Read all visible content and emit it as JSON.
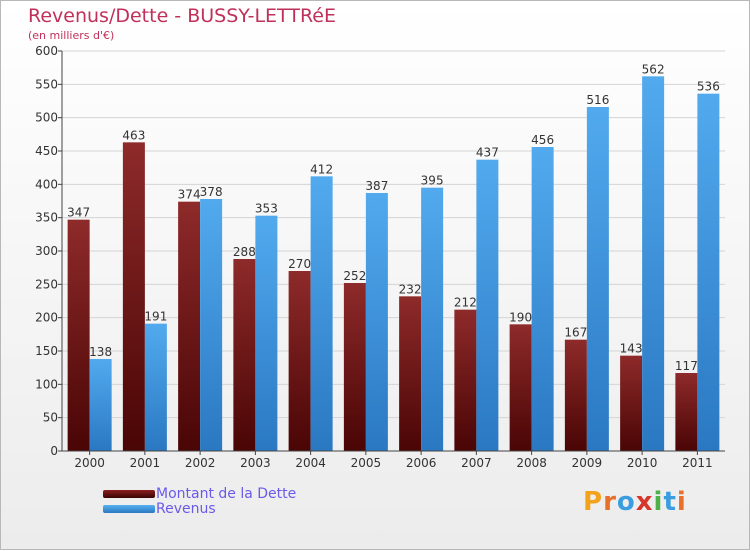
{
  "title": "Revenus/Dette - BUSSY-LETTRéE",
  "subtitle": "(en milliers d'€)",
  "legend": {
    "items": [
      {
        "label": "Montant de la Dette",
        "color": "#8c2020"
      },
      {
        "label": "Revenus",
        "color": "#4aa3e8"
      }
    ]
  },
  "logo": {
    "text": "Proxiti",
    "colors": [
      "#f2a21b",
      "#e8702a",
      "#3a9de0",
      "#d6362c",
      "#4fb04a",
      "#3a9de0",
      "#e8702a"
    ]
  },
  "chart_data": {
    "type": "bar",
    "title": "Revenus/Dette - BUSSY-LETTRéE",
    "subtitle": "(en milliers d'€)",
    "categories": [
      "2000",
      "2001",
      "2002",
      "2003",
      "2004",
      "2005",
      "2006",
      "2007",
      "2008",
      "2009",
      "2010",
      "2011"
    ],
    "series": [
      {
        "name": "Montant de la Dette",
        "color": "#8c2020",
        "values": [
          347,
          463,
          374,
          288,
          270,
          252,
          232,
          212,
          190,
          167,
          143,
          117
        ]
      },
      {
        "name": "Revenus",
        "color": "#4aa3e8",
        "values": [
          138,
          191,
          378,
          353,
          412,
          387,
          395,
          437,
          456,
          516,
          562,
          536
        ]
      }
    ],
    "ylim": [
      0,
      600
    ],
    "yticks": [
      0,
      50,
      100,
      150,
      200,
      250,
      300,
      350,
      400,
      450,
      500,
      550,
      600
    ],
    "grid": true,
    "legend_position": "bottom-left"
  }
}
